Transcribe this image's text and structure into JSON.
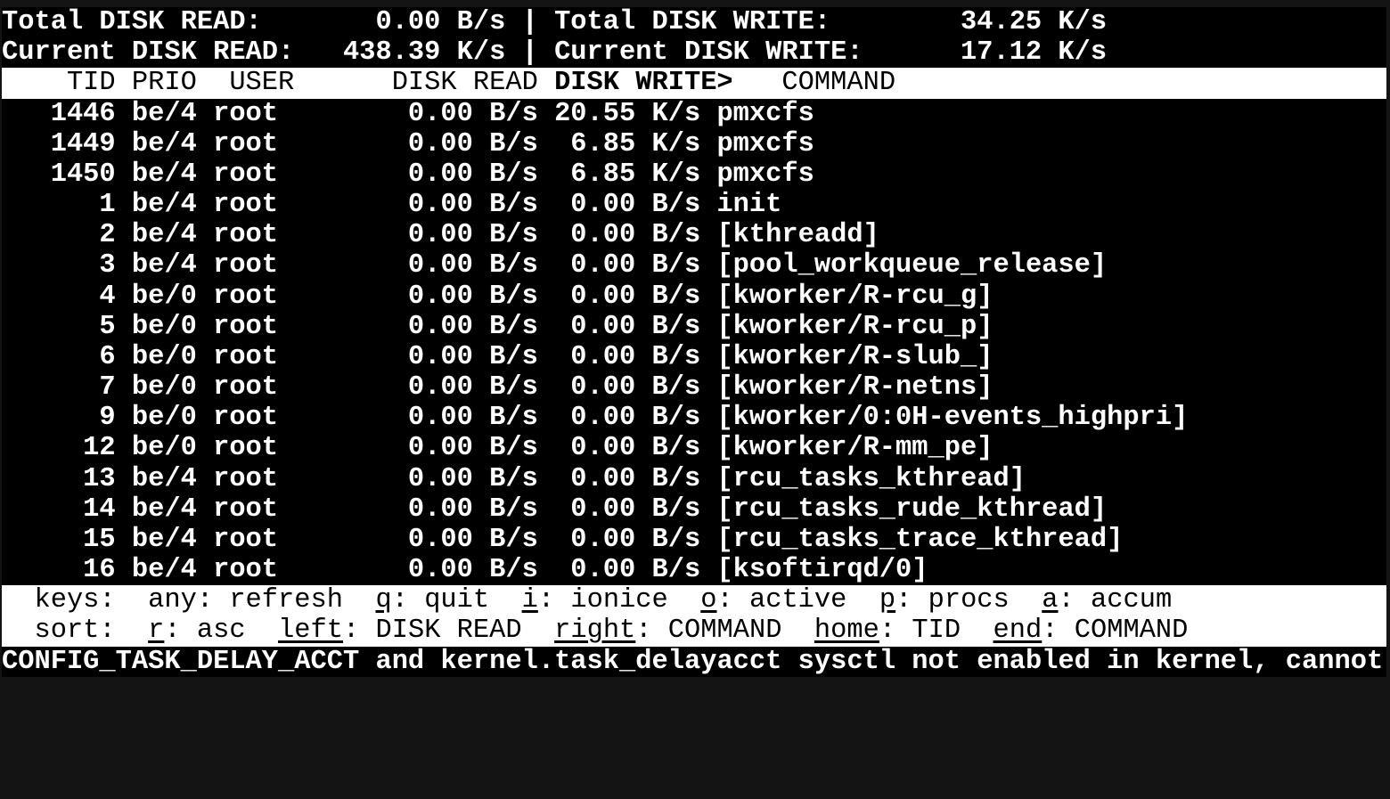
{
  "colors": {
    "background": "#000000",
    "foreground": "#ffffff",
    "inverse_bg": "#ffffff",
    "inverse_fg": "#000000",
    "window_edge": "#141414"
  },
  "totals": {
    "total_read_label": "Total DISK READ:",
    "total_read_value": "0.00 B/s",
    "total_write_label": "Total DISK WRITE:",
    "total_write_value": "34.25 K/s",
    "current_read_label": "Current DISK READ:",
    "current_read_value": "438.39 K/s",
    "current_write_label": "Current DISK WRITE:",
    "current_write_value": "17.12 K/s",
    "separator": "|"
  },
  "table": {
    "headers": {
      "tid": "TID",
      "prio": "PRIO",
      "user": "USER",
      "read": "DISK READ",
      "write": "DISK WRITE>",
      "command": "COMMAND"
    },
    "sort_column": "DISK WRITE",
    "sort_indicator": ">",
    "rows": [
      {
        "tid": "1446",
        "prio": "be/4",
        "user": "root",
        "read": "0.00 B/s",
        "write": "20.55 K/s",
        "command": "pmxcfs"
      },
      {
        "tid": "1449",
        "prio": "be/4",
        "user": "root",
        "read": "0.00 B/s",
        "write": "6.85 K/s",
        "command": "pmxcfs"
      },
      {
        "tid": "1450",
        "prio": "be/4",
        "user": "root",
        "read": "0.00 B/s",
        "write": "6.85 K/s",
        "command": "pmxcfs"
      },
      {
        "tid": "1",
        "prio": "be/4",
        "user": "root",
        "read": "0.00 B/s",
        "write": "0.00 B/s",
        "command": "init"
      },
      {
        "tid": "2",
        "prio": "be/4",
        "user": "root",
        "read": "0.00 B/s",
        "write": "0.00 B/s",
        "command": "[kthreadd]"
      },
      {
        "tid": "3",
        "prio": "be/4",
        "user": "root",
        "read": "0.00 B/s",
        "write": "0.00 B/s",
        "command": "[pool_workqueue_release]"
      },
      {
        "tid": "4",
        "prio": "be/0",
        "user": "root",
        "read": "0.00 B/s",
        "write": "0.00 B/s",
        "command": "[kworker/R-rcu_g]"
      },
      {
        "tid": "5",
        "prio": "be/0",
        "user": "root",
        "read": "0.00 B/s",
        "write": "0.00 B/s",
        "command": "[kworker/R-rcu_p]"
      },
      {
        "tid": "6",
        "prio": "be/0",
        "user": "root",
        "read": "0.00 B/s",
        "write": "0.00 B/s",
        "command": "[kworker/R-slub_]"
      },
      {
        "tid": "7",
        "prio": "be/0",
        "user": "root",
        "read": "0.00 B/s",
        "write": "0.00 B/s",
        "command": "[kworker/R-netns]"
      },
      {
        "tid": "9",
        "prio": "be/0",
        "user": "root",
        "read": "0.00 B/s",
        "write": "0.00 B/s",
        "command": "[kworker/0:0H-events_highpri]"
      },
      {
        "tid": "12",
        "prio": "be/0",
        "user": "root",
        "read": "0.00 B/s",
        "write": "0.00 B/s",
        "command": "[kworker/R-mm_pe]"
      },
      {
        "tid": "13",
        "prio": "be/4",
        "user": "root",
        "read": "0.00 B/s",
        "write": "0.00 B/s",
        "command": "[rcu_tasks_kthread]"
      },
      {
        "tid": "14",
        "prio": "be/4",
        "user": "root",
        "read": "0.00 B/s",
        "write": "0.00 B/s",
        "command": "[rcu_tasks_rude_kthread]"
      },
      {
        "tid": "15",
        "prio": "be/4",
        "user": "root",
        "read": "0.00 B/s",
        "write": "0.00 B/s",
        "command": "[rcu_tasks_trace_kthread]"
      },
      {
        "tid": "16",
        "prio": "be/4",
        "user": "root",
        "read": "0.00 B/s",
        "write": "0.00 B/s",
        "command": "[ksoftirqd/0]"
      }
    ]
  },
  "help": {
    "keys_segments": [
      {
        "t": "  keys:  any: refresh  ",
        "u": false
      },
      {
        "t": "q",
        "u": true
      },
      {
        "t": ": quit  ",
        "u": false
      },
      {
        "t": "i",
        "u": true
      },
      {
        "t": ": ionice  ",
        "u": false
      },
      {
        "t": "o",
        "u": true
      },
      {
        "t": ": active  ",
        "u": false
      },
      {
        "t": "p",
        "u": true
      },
      {
        "t": ": procs  ",
        "u": false
      },
      {
        "t": "a",
        "u": true
      },
      {
        "t": ": accum",
        "u": false
      }
    ],
    "sort_segments": [
      {
        "t": "  sort:  ",
        "u": false
      },
      {
        "t": "r",
        "u": true
      },
      {
        "t": ": asc  ",
        "u": false
      },
      {
        "t": "left",
        "u": true
      },
      {
        "t": ": DISK READ  ",
        "u": false
      },
      {
        "t": "right",
        "u": true
      },
      {
        "t": ": COMMAND  ",
        "u": false
      },
      {
        "t": "home",
        "u": true
      },
      {
        "t": ": TID  ",
        "u": false
      },
      {
        "t": "end",
        "u": true
      },
      {
        "t": ": COMMAND",
        "u": false
      }
    ]
  },
  "status": {
    "message": "CONFIG_TASK_DELAY_ACCT and kernel.task_delayacct sysctl not enabled in kernel, cannot"
  }
}
